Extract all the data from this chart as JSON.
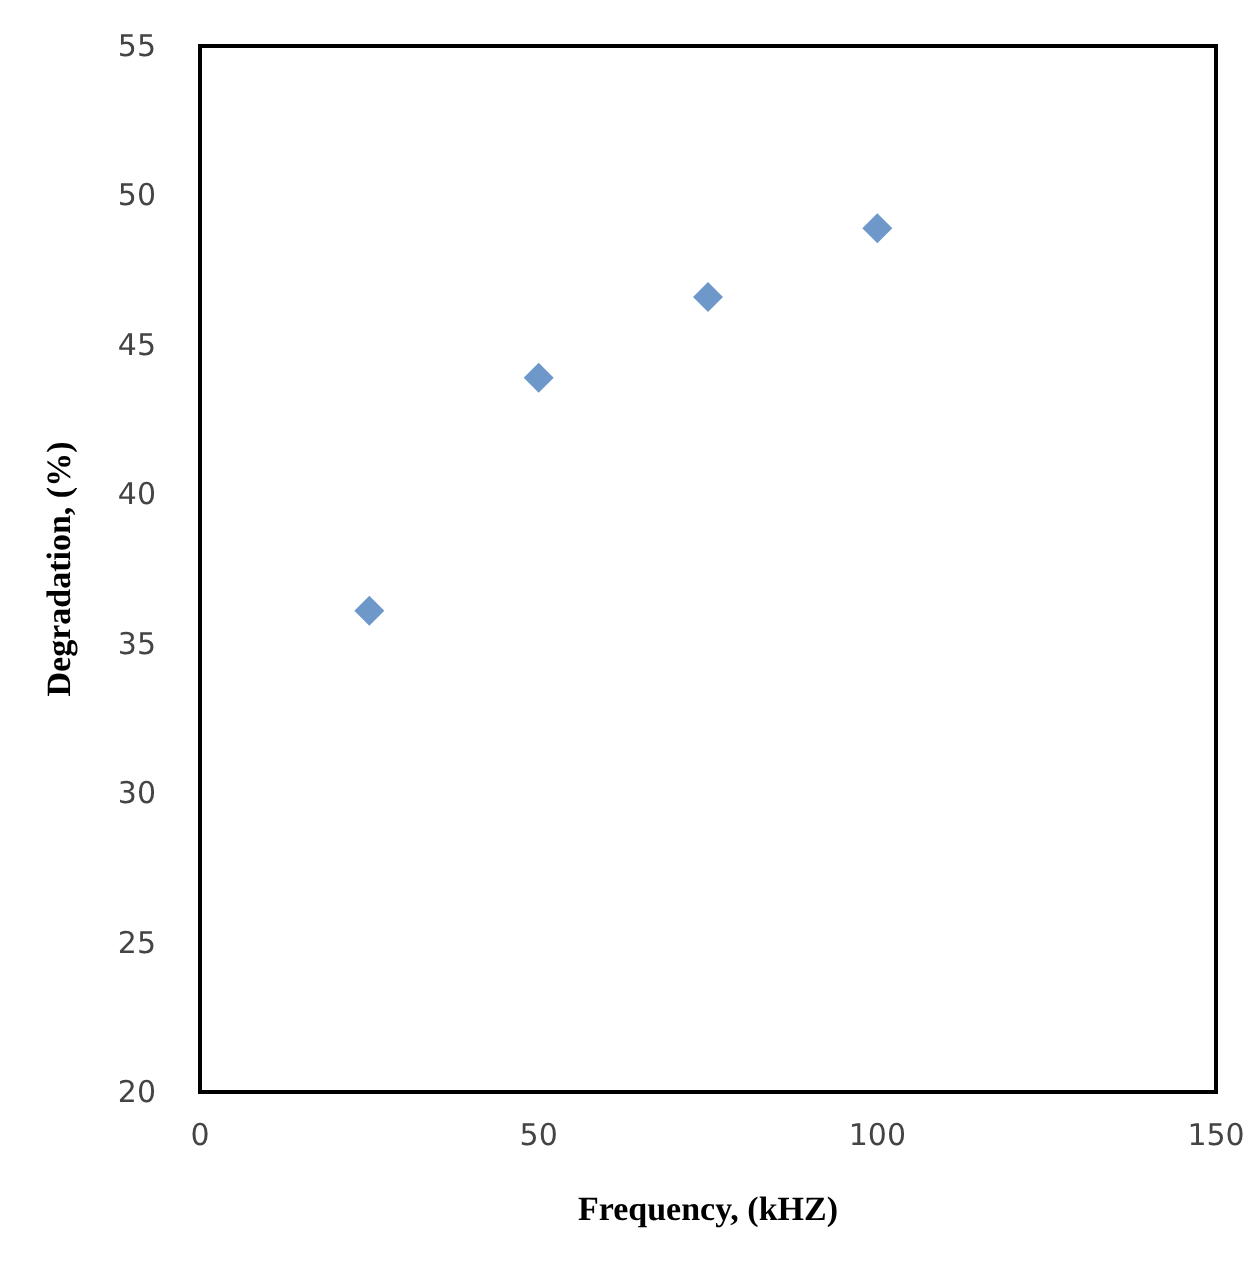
{
  "chart_data": {
    "type": "scatter",
    "xlabel": "Frequency, (kHZ)",
    "ylabel": "Degradation, (%)",
    "x": [
      25,
      50,
      75,
      100
    ],
    "series": [
      {
        "color": "#4a7ebb",
        "values": [
          36.1,
          43.9,
          46.6,
          48.9
        ]
      }
    ],
    "xlim": [
      0,
      150
    ],
    "xticks": [
      0,
      50,
      100,
      150
    ],
    "ylim": [
      20,
      55
    ],
    "yticks": [
      20,
      25,
      30,
      35,
      40,
      45,
      50,
      55
    ],
    "marker": "diamond"
  }
}
